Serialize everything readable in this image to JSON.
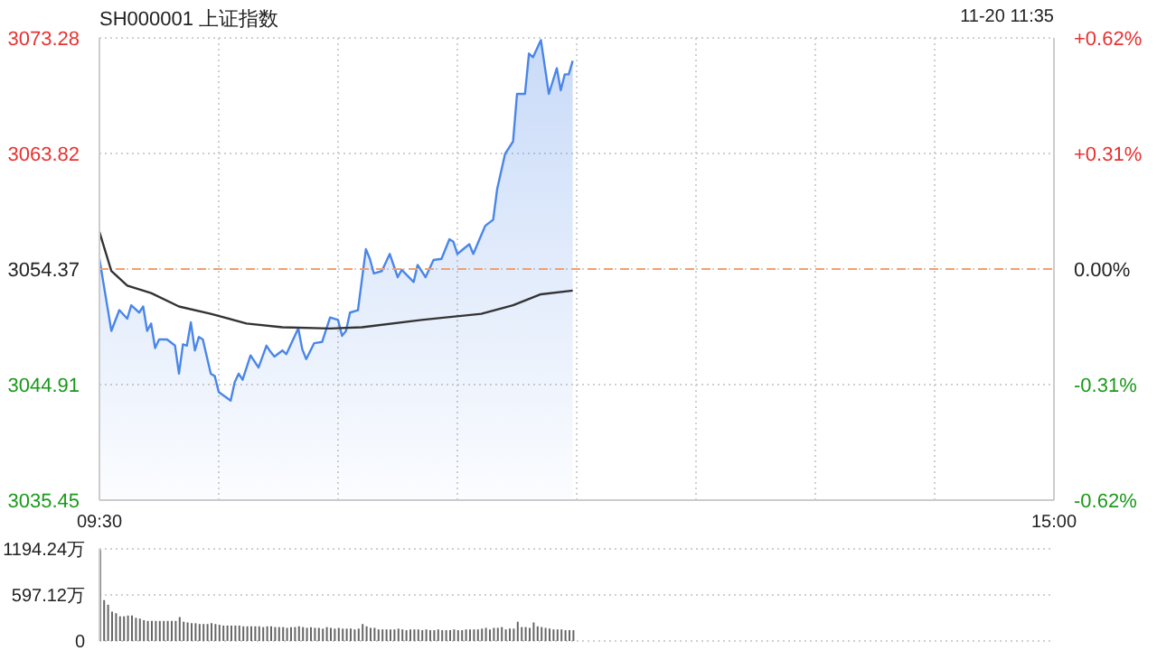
{
  "chart_data": [
    {
      "type": "area",
      "title": "SH000001 上证指数",
      "annotations": [
        "11-20 11:35"
      ],
      "categories": [
        "09:30",
        null,
        null,
        null,
        null,
        null,
        null,
        null,
        null,
        null,
        null,
        null,
        null,
        null,
        null,
        null,
        null,
        null,
        null,
        null,
        null,
        null,
        null,
        null,
        null,
        null,
        null,
        null,
        null,
        null,
        null,
        null,
        null,
        null,
        null,
        null,
        null,
        null,
        null,
        null,
        null,
        null,
        null,
        null,
        null,
        null,
        null,
        null,
        null,
        null,
        null,
        null,
        null,
        null,
        null,
        null,
        null,
        null,
        null,
        null,
        null,
        null,
        null,
        null,
        null,
        null,
        null,
        null,
        null,
        null,
        null,
        null,
        null,
        null,
        null,
        null,
        null,
        null,
        null,
        null,
        null,
        null,
        null,
        null,
        null,
        null,
        null,
        null,
        null,
        null,
        null,
        null,
        null,
        null,
        null,
        null,
        null,
        null,
        null,
        null,
        null,
        null,
        null,
        null,
        null,
        null,
        null,
        null,
        null,
        null,
        null,
        null,
        null,
        null,
        null,
        null,
        null,
        null,
        null,
        null,
        null,
        null,
        null,
        null,
        null,
        null,
        null,
        null,
        null,
        null,
        null,
        null,
        null,
        null,
        null,
        null,
        null,
        null,
        null,
        null,
        null,
        null,
        null,
        null,
        null,
        null,
        null,
        null,
        null,
        null,
        null,
        null,
        null,
        null,
        null,
        null,
        null,
        null,
        null,
        null,
        null,
        null,
        null,
        null,
        null,
        null,
        null,
        null,
        null,
        null,
        null,
        null,
        null,
        null,
        null,
        null,
        null,
        null,
        null,
        null,
        null,
        null,
        null,
        null,
        null,
        null,
        null,
        null,
        null,
        null,
        null,
        null,
        null,
        null,
        null,
        null,
        null,
        null,
        null,
        null,
        null,
        null,
        null,
        null,
        null,
        null,
        null,
        null,
        null,
        null,
        null,
        null,
        null,
        null,
        null,
        null,
        null,
        null,
        null,
        null,
        null,
        null,
        null,
        null,
        null,
        null,
        null,
        null,
        null,
        null,
        null,
        null,
        null,
        null,
        null,
        null,
        null,
        null,
        null,
        null,
        "15:00"
      ],
      "series": [
        {
          "type": "area",
          "color": "#4a86e8",
          "values": [
            3055.2,
            null,
            null,
            3049.3,
            null,
            3051.0,
            null,
            3050.3,
            3051.4,
            null,
            3050.8,
            3051.3,
            3049.3,
            3049.9,
            3047.9,
            3048.6,
            null,
            3048.6,
            null,
            3048.1,
            3045.8,
            3048.2,
            3048.1,
            3050.0,
            3047.7,
            3048.8,
            3048.6,
            null,
            3045.8,
            3045.6,
            3044.3,
            null,
            null,
            3043.6,
            3045.1,
            3045.8,
            3045.3,
            null,
            3047.3,
            null,
            3046.3,
            null,
            3048.1,
            3047.6,
            3047.2,
            null,
            3047.7,
            3047.4,
            3048.1,
            null,
            3049.5,
            3047.8,
            3047.0,
            null,
            3048.3,
            null,
            3048.4,
            null,
            3050.4,
            null,
            3050.2,
            3048.9,
            3049.3,
            3050.8,
            null,
            3051.0,
            null,
            3056.0,
            3055.2,
            3054.0,
            null,
            3054.2,
            null,
            3055.6,
            null,
            3053.7,
            3054.3,
            null,
            null,
            3053.3,
            3054.7,
            null,
            3053.7,
            null,
            3055.1,
            null,
            3055.2,
            null,
            3056.8,
            3056.6,
            3055.6,
            null,
            null,
            3056.4,
            3055.6,
            null,
            null,
            3057.9,
            null,
            3058.4,
            3060.9,
            null,
            3063.8,
            null,
            3064.8,
            3068.7,
            null,
            3068.7,
            3072.0,
            3071.7,
            null,
            3073.1,
            null,
            3068.7,
            null,
            3070.8,
            3069.0,
            3070.3,
            3070.3,
            3071.4,
            null,
            null,
            null,
            null,
            null,
            null,
            null,
            null,
            null,
            null,
            null,
            null,
            null,
            null,
            null,
            null,
            null,
            null,
            null,
            null,
            null,
            null,
            null,
            null,
            null,
            null,
            null,
            null,
            null,
            null,
            null,
            null,
            null,
            null,
            null,
            null,
            null,
            null,
            null,
            null,
            null,
            null,
            null,
            null,
            null,
            null,
            null,
            null,
            null,
            null,
            null,
            null,
            null,
            null,
            null,
            null,
            null,
            null,
            null,
            null,
            null,
            null,
            null,
            null,
            null,
            null,
            null,
            null,
            null,
            null,
            null,
            null,
            null,
            null,
            null,
            null,
            null,
            null,
            null,
            null,
            null,
            null,
            null,
            null,
            null,
            null,
            null,
            null,
            null,
            null,
            null,
            null,
            null,
            null,
            null,
            null,
            null,
            null,
            null,
            null,
            null,
            null,
            null,
            null,
            null,
            null,
            null,
            null,
            null,
            null,
            null,
            null,
            null,
            null,
            null,
            null,
            null,
            null,
            null,
            null,
            null
          ]
        },
        {
          "type": "line",
          "color": "#333333",
          "values": [
            3057.4,
            null,
            null,
            3054.2,
            null,
            null,
            null,
            3053.0,
            null,
            null,
            null,
            null,
            null,
            3052.4,
            null,
            null,
            null,
            null,
            null,
            null,
            3051.3,
            null,
            null,
            null,
            null,
            null,
            null,
            null,
            3050.7,
            null,
            null,
            null,
            null,
            null,
            null,
            null,
            null,
            3049.9,
            null,
            null,
            null,
            null,
            null,
            null,
            null,
            null,
            3049.6,
            null,
            null,
            null,
            null,
            null,
            null,
            null,
            null,
            null,
            null,
            null,
            3049.5,
            null,
            null,
            null,
            null,
            null,
            null,
            null,
            3049.6,
            null,
            null,
            null,
            null,
            null,
            null,
            null,
            null,
            null,
            null,
            null,
            null,
            null,
            null,
            3050.2,
            null,
            null,
            null,
            null,
            null,
            null,
            null,
            null,
            null,
            null,
            null,
            null,
            null,
            null,
            3050.7,
            null,
            null,
            null,
            null,
            null,
            null,
            null,
            3051.4,
            null,
            null,
            null,
            null,
            null,
            null,
            3052.3,
            null,
            null,
            null,
            null,
            null,
            null,
            null,
            3052.6,
            null,
            null,
            null,
            null,
            null,
            null,
            null,
            null,
            null,
            null,
            null,
            null,
            null,
            null,
            null,
            null,
            null,
            null,
            null,
            null,
            null,
            null,
            null,
            null,
            null,
            null,
            null,
            null,
            null,
            null,
            null,
            null,
            null,
            null,
            null,
            null,
            null,
            null,
            null,
            null,
            null,
            null,
            null,
            null,
            null,
            null,
            null,
            null,
            null,
            null,
            null,
            null,
            null,
            null,
            null,
            null,
            null,
            null,
            null,
            null,
            null,
            null,
            null,
            null,
            null,
            null,
            null,
            null,
            null,
            null,
            null,
            null,
            null,
            null,
            null,
            null,
            null,
            null,
            null,
            null,
            null,
            null,
            null,
            null,
            null,
            null,
            null,
            null,
            null,
            null,
            null,
            null,
            null,
            null,
            null,
            null,
            null,
            null,
            null,
            null,
            null,
            null,
            null,
            null,
            null,
            null,
            null,
            null,
            null,
            null,
            null,
            null,
            null,
            null,
            null,
            null,
            null,
            null,
            null,
            null,
            null
          ]
        }
      ],
      "ylim": [
        3035.45,
        3073.28
      ],
      "yticks": [
        3035.45,
        3044.91,
        3054.37,
        3063.82,
        3073.28
      ],
      "y2lim": [
        -0.62,
        0.62
      ],
      "y2ticks": [
        {
          "value": -0.62,
          "label": "-0.62%"
        },
        {
          "value": -0.31,
          "label": "-0.31%"
        },
        {
          "value": 0,
          "label": "0.00%"
        },
        {
          "value": 0.31,
          "label": "+0.31%"
        },
        {
          "value": 0.62,
          "label": "+0.62%"
        }
      ],
      "ref_lines": [
        {
          "axis": "y",
          "value": 3054.37,
          "color": "#f0a070",
          "line_style": "dashed"
        }
      ],
      "grid": true,
      "marker": "none"
    },
    {
      "type": "bar",
      "color": "#666666",
      "tick_labels": "y",
      "grid": "y",
      "categories": [
        null,
        null,
        null,
        null,
        null,
        null,
        null,
        null,
        null,
        null,
        null,
        null,
        null,
        null,
        null,
        null,
        null,
        null,
        null,
        null,
        null,
        null,
        null,
        null,
        null,
        null,
        null,
        null,
        null,
        null,
        null,
        null,
        null,
        null,
        null,
        null,
        null,
        null,
        null,
        null,
        null,
        null,
        null,
        null,
        null,
        null,
        null,
        null,
        null,
        null,
        null,
        null,
        null,
        null,
        null,
        null,
        null,
        null,
        null,
        null,
        null,
        null,
        null,
        null,
        null,
        null,
        null,
        null,
        null,
        null,
        null,
        null,
        null,
        null,
        null,
        null,
        null,
        null,
        null,
        null,
        null,
        null,
        null,
        null,
        null,
        null,
        null,
        null,
        null,
        null,
        null,
        null,
        null,
        null,
        null,
        null,
        null,
        null,
        null,
        null,
        null,
        null,
        null,
        null,
        null,
        null,
        null,
        null,
        null,
        null,
        null,
        null,
        null,
        null,
        null,
        null,
        null,
        null,
        null,
        null,
        null,
        null,
        null,
        null,
        null,
        null,
        null,
        null,
        null,
        null,
        null,
        null,
        null,
        null,
        null,
        null,
        null,
        null,
        null,
        null,
        null,
        null,
        null,
        null,
        null,
        null,
        null,
        null,
        null,
        null,
        null,
        null,
        null,
        null,
        null,
        null,
        null,
        null,
        null,
        null,
        null,
        null,
        null,
        null,
        null,
        null,
        null,
        null,
        null,
        null,
        null,
        null,
        null,
        null,
        null,
        null,
        null,
        null,
        null,
        null,
        null,
        null,
        null,
        null,
        null,
        null,
        null,
        null,
        null,
        null,
        null,
        null,
        null,
        null,
        null,
        null,
        null,
        null,
        null,
        null,
        null,
        null,
        null,
        null,
        null,
        null,
        null,
        null,
        null,
        null,
        null,
        null,
        null,
        null,
        null,
        null,
        null,
        null,
        null,
        null,
        null,
        null,
        null,
        null,
        null,
        null,
        null,
        null,
        null,
        null,
        null,
        null,
        null,
        null,
        null,
        null,
        null,
        null,
        null,
        null,
        null
      ],
      "values": [
        1180,
        530,
        470,
        380,
        360,
        320,
        320,
        330,
        330,
        300,
        290,
        270,
        260,
        260,
        260,
        260,
        260,
        260,
        260,
        260,
        310,
        250,
        240,
        230,
        230,
        220,
        220,
        220,
        230,
        220,
        210,
        200,
        200,
        200,
        200,
        200,
        190,
        190,
        190,
        190,
        190,
        180,
        190,
        190,
        180,
        180,
        180,
        170,
        180,
        180,
        190,
        180,
        170,
        180,
        170,
        170,
        160,
        180,
        170,
        160,
        170,
        160,
        160,
        160,
        150,
        160,
        220,
        190,
        170,
        170,
        150,
        150,
        150,
        150,
        150,
        160,
        150,
        140,
        150,
        150,
        150,
        140,
        150,
        140,
        140,
        150,
        140,
        140,
        140,
        150,
        140,
        140,
        150,
        150,
        150,
        150,
        160,
        170,
        150,
        170,
        170,
        180,
        150,
        160,
        160,
        250,
        180,
        180,
        170,
        240,
        190,
        180,
        170,
        160,
        150,
        150,
        150,
        140,
        140,
        140,
        null,
        null,
        null,
        null,
        null,
        null,
        null,
        null,
        null,
        null,
        null,
        null,
        null,
        null,
        null,
        null,
        null,
        null,
        null,
        null,
        null,
        null,
        null,
        null,
        null,
        null,
        null,
        null,
        null,
        null,
        null,
        null,
        null,
        null,
        null,
        null,
        null,
        null,
        null,
        null,
        null,
        null,
        null,
        null,
        null,
        null,
        null,
        null,
        null,
        null,
        null,
        null,
        null,
        null,
        null,
        null,
        null,
        null,
        null,
        null,
        null,
        null,
        null,
        null,
        null,
        null,
        null,
        null,
        null,
        null,
        null,
        null,
        null,
        null,
        null,
        null,
        null,
        null,
        null,
        null,
        null,
        null,
        null,
        null,
        null,
        null,
        null,
        null,
        null,
        null,
        null,
        null,
        null,
        null,
        null,
        null,
        null,
        null,
        null,
        null,
        null,
        null,
        null,
        null,
        null,
        null,
        null,
        null,
        null,
        null,
        null,
        null,
        null,
        null,
        null,
        null,
        null,
        null,
        null,
        null,
        null
      ],
      "ylim": [
        0,
        1194.24
      ],
      "yticks": [
        0,
        {
          "value": 597.12,
          "label": "597.12万"
        },
        {
          "value": 1194.24,
          "label": "1194.24万"
        }
      ]
    }
  ]
}
